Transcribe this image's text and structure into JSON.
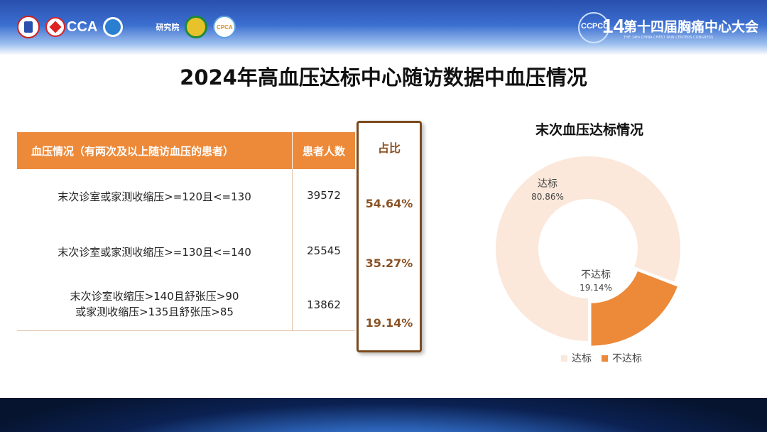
{
  "header": {
    "logo_cca_text": "CCA",
    "logo_inst_small": "",
    "logo_inst_text": "研究院",
    "logo_cpca_text": "CPCA",
    "conference_badge_label": "CCPCC",
    "conference_badge_number": "14",
    "conference_title": "第十四届胸痛中心大会",
    "conference_subtitle": "THE 14th CHINA CHEST PAIN CENTERS CONGRESS"
  },
  "title": "2024年高血压达标中心随访数据中血压情况",
  "table": {
    "columns": [
      "血压情况（有两次及以上随访血压的患者）",
      "患者人数",
      "占比"
    ],
    "rows": [
      {
        "condition": [
          "末次诊室或家测收缩压>=120且<=130"
        ],
        "count": "39572",
        "share": "54.64%"
      },
      {
        "condition": [
          "末次诊室或家测收缩压>=130且<=140"
        ],
        "count": "25545",
        "share": "35.27%"
      },
      {
        "condition": [
          "末次诊室收缩压>140且舒张压>90",
          "或家测收缩压>135且舒张压>85"
        ],
        "count": "13862",
        "share": "19.14%"
      }
    ]
  },
  "chart_data": {
    "type": "pie",
    "title": "末次血压达标情况",
    "categories": [
      "达标",
      "不达标"
    ],
    "values": [
      80.86,
      19.14
    ],
    "value_labels": [
      "80.86%",
      "19.14%"
    ],
    "colors": [
      "#fbe8da",
      "#ec8a3a"
    ],
    "legend": "bottom",
    "donut": true
  }
}
